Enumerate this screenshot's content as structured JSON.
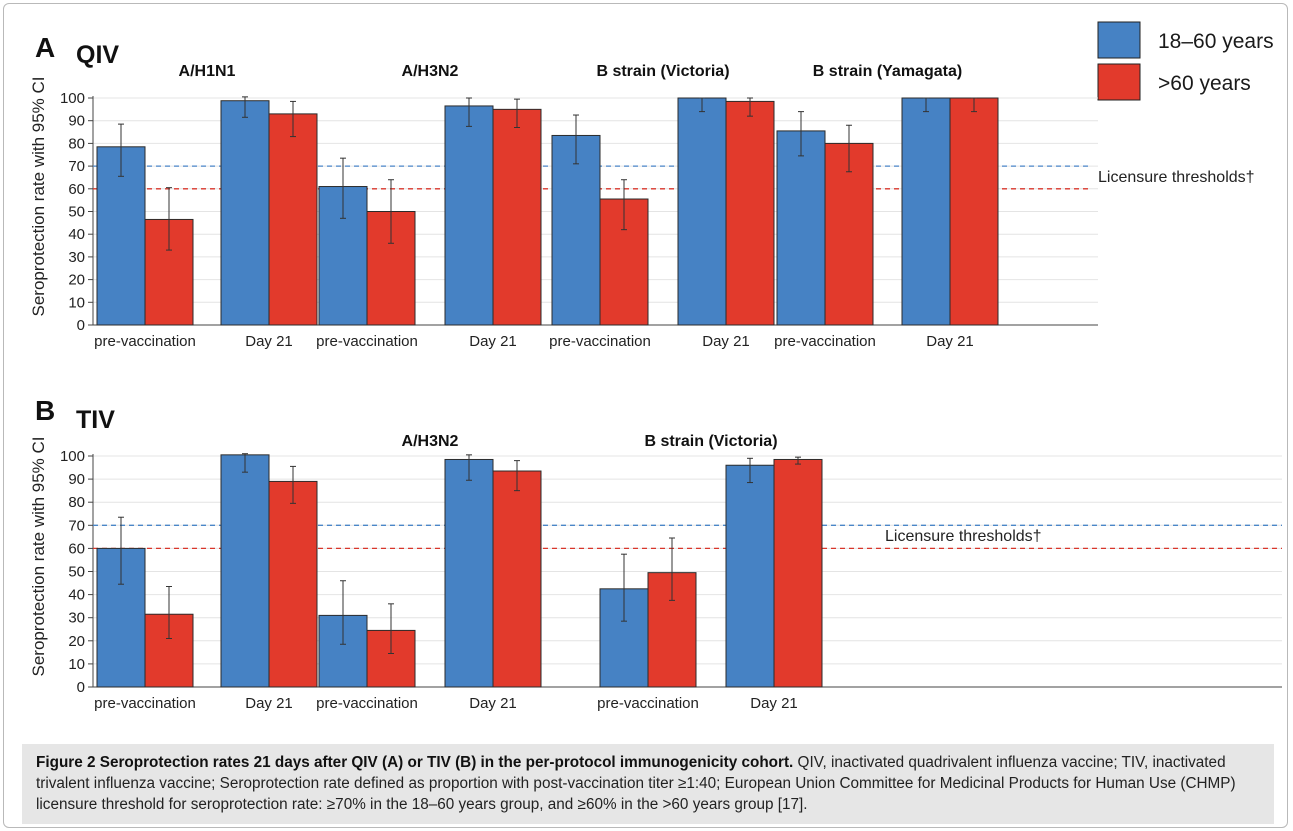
{
  "legend": {
    "items": [
      {
        "label": "18–60 years",
        "color": "#4682c4"
      },
      {
        "label": ">60 years",
        "color": "#e23a2c"
      }
    ]
  },
  "colors": {
    "blue": "#4682c4",
    "red": "#e23a2c",
    "threshold_blue": "#4a86c8",
    "threshold_red": "#d9362b",
    "grid": "#e4e4e4"
  },
  "caption": {
    "title": "Figure 2 Seroprotection rates 21 days after QIV (A) or TIV (B) in the per-protocol immunogenicity cohort.",
    "body": " QIV, inactivated quadrivalent influenza vaccine; TIV, inactivated trivalent influenza vaccine; Seroprotection rate defined as proportion with post-vaccination titer ≥1:40; European Union Committee for Medicinal Products for Human Use (CHMP) licensure threshold for seroprotection rate: ≥70% in the 18–60 years group, and ≥60% in the >60 years group [17]."
  },
  "chart_data": [
    {
      "type": "bar",
      "panel_letter": "A",
      "title": "QIV",
      "ylabel": "Seroprotection rate with 95% CI",
      "ylim": [
        0,
        100
      ],
      "yticks": [
        0,
        10,
        20,
        30,
        40,
        50,
        60,
        70,
        80,
        90,
        100
      ],
      "grid": true,
      "threshold_label": "Licensure thresholds†",
      "thresholds": [
        {
          "series": "18–60 years",
          "value": 70
        },
        {
          "series": ">60 years",
          "value": 60
        }
      ],
      "groups": [
        {
          "name": "A/H1N1",
          "categories": [
            {
              "label": "pre-vaccination",
              "values": [
                78.5,
                46.5
              ],
              "ci_low": [
                65.5,
                33
              ],
              "ci_high": [
                88.5,
                60.5
              ]
            },
            {
              "label": "Day 21",
              "values": [
                98.8,
                93
              ],
              "ci_low": [
                91.5,
                83
              ],
              "ci_high": [
                100.5,
                98.5
              ]
            }
          ]
        },
        {
          "name": "A/H3N2",
          "categories": [
            {
              "label": "pre-vaccination",
              "values": [
                61,
                50
              ],
              "ci_low": [
                47,
                36
              ],
              "ci_high": [
                73.5,
                64
              ]
            },
            {
              "label": "Day 21",
              "values": [
                96.5,
                95
              ],
              "ci_low": [
                87.5,
                87
              ],
              "ci_high": [
                100,
                99.5
              ]
            }
          ]
        },
        {
          "name": "B strain (Victoria)",
          "categories": [
            {
              "label": "pre-vaccination",
              "values": [
                83.5,
                55.5
              ],
              "ci_low": [
                71,
                42
              ],
              "ci_high": [
                92.5,
                64
              ]
            },
            {
              "label": "Day 21",
              "values": [
                100,
                98.5
              ],
              "ci_low": [
                94,
                92
              ],
              "ci_high": [
                100,
                100
              ]
            }
          ]
        },
        {
          "name": "B strain (Yamagata)",
          "categories": [
            {
              "label": "pre-vaccination",
              "values": [
                85.5,
                80
              ],
              "ci_low": [
                74.5,
                67.5
              ],
              "ci_high": [
                94,
                88
              ]
            },
            {
              "label": "Day 21",
              "values": [
                100,
                100
              ],
              "ci_low": [
                94,
                94
              ],
              "ci_high": [
                100,
                100
              ]
            }
          ]
        }
      ]
    },
    {
      "type": "bar",
      "panel_letter": "B",
      "title": "TIV",
      "ylabel": "Seroprotection rate with 95% CI",
      "ylim": [
        0,
        100
      ],
      "yticks": [
        0,
        10,
        20,
        30,
        40,
        50,
        60,
        70,
        80,
        90,
        100
      ],
      "grid": true,
      "threshold_label": "Licensure thresholds†",
      "thresholds": [
        {
          "series": "18–60 years",
          "value": 70
        },
        {
          "series": ">60 years",
          "value": 60
        }
      ],
      "groups": [
        {
          "name": "",
          "categories": [
            {
              "label": "pre-vaccination",
              "values": [
                60,
                31.5
              ],
              "ci_low": [
                44.5,
                21
              ],
              "ci_high": [
                73.5,
                43.5
              ]
            },
            {
              "label": "Day 21",
              "values": [
                100.5,
                89
              ],
              "ci_low": [
                93,
                79.5
              ],
              "ci_high": [
                101,
                95.5
              ]
            }
          ]
        },
        {
          "name": "A/H3N2",
          "categories": [
            {
              "label": "pre-vaccination",
              "values": [
                31,
                24.5
              ],
              "ci_low": [
                18.5,
                14.5
              ],
              "ci_high": [
                46,
                36
              ]
            },
            {
              "label": "Day 21",
              "values": [
                98.5,
                93.5
              ],
              "ci_low": [
                89.5,
                85
              ],
              "ci_high": [
                100.5,
                98
              ]
            }
          ]
        },
        {
          "name": "B strain (Victoria)",
          "categories": [
            {
              "label": "pre-vaccination",
              "values": [
                42.5,
                49.5
              ],
              "ci_low": [
                28.5,
                37.5
              ],
              "ci_high": [
                57.5,
                64.5
              ]
            },
            {
              "label": "Day 21",
              "values": [
                96,
                98.5
              ],
              "ci_low": [
                88.5,
                96.5
              ],
              "ci_high": [
                99,
                99.5
              ]
            }
          ]
        }
      ]
    }
  ]
}
